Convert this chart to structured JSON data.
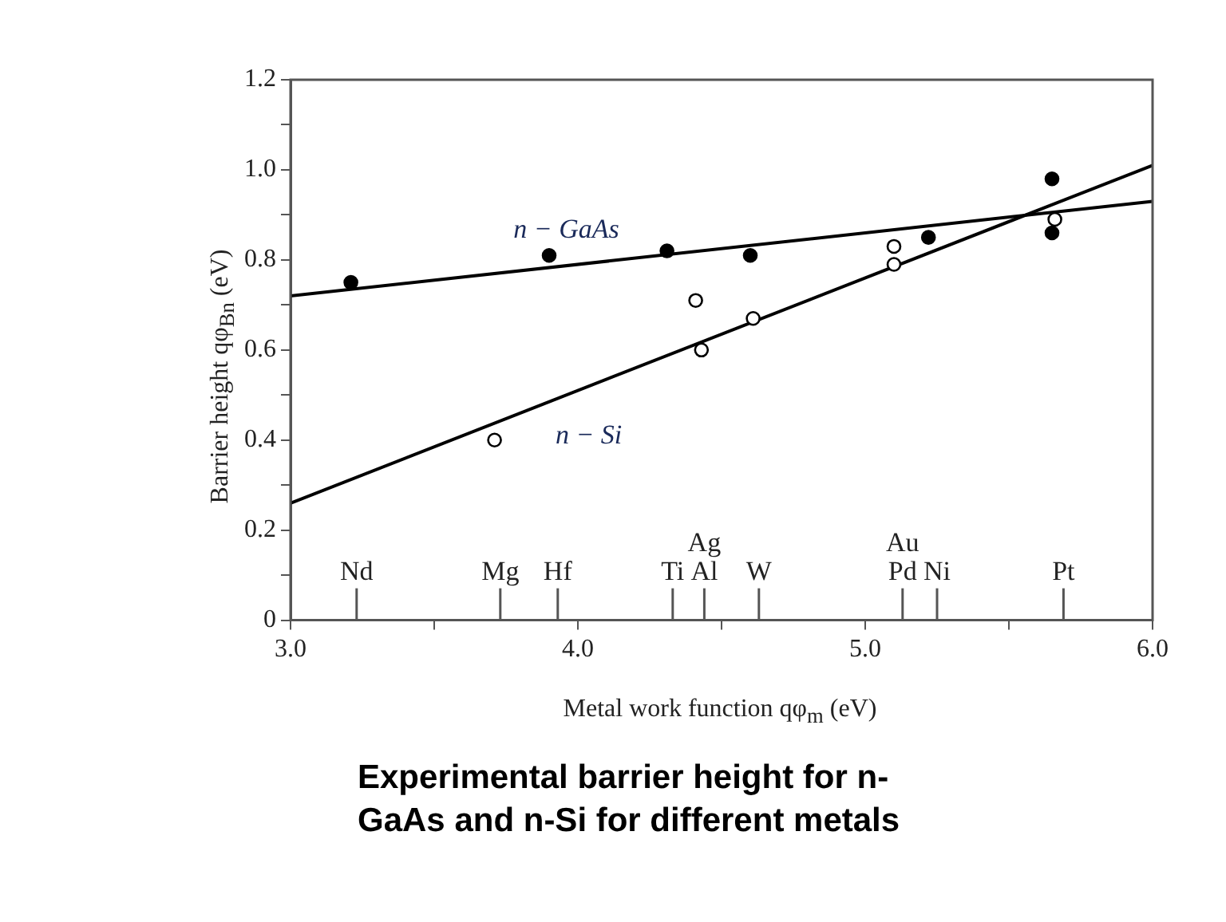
{
  "chart_data": {
    "type": "scatter",
    "xlabel": "Metal work function qφ$_{m}$ (eV)",
    "ylabel": "Barrier height qφ$_{Bn}$ (eV)",
    "xlim": [
      3.0,
      6.0
    ],
    "xticks": [
      {
        "value": 3,
        "label": "3.0"
      },
      {
        "value": 3.5,
        "label": null
      },
      {
        "value": 4,
        "label": "4.0"
      },
      {
        "value": 4.5,
        "label": null
      },
      {
        "value": 5,
        "label": "5.0"
      },
      {
        "value": 5.5,
        "label": null
      },
      {
        "value": 6,
        "label": "6.0"
      }
    ],
    "ref_lines": [
      {
        "axis": "x",
        "value": 3.23,
        "label": "Nd"
      },
      {
        "axis": "x",
        "value": 3.73,
        "label": "Mg"
      },
      {
        "axis": "x",
        "value": 3.93,
        "label": "Hf"
      },
      {
        "axis": "x",
        "value": 4.33,
        "label": "Ti"
      },
      {
        "axis": "x",
        "value": 4.44,
        "label": "Ag\nAl"
      },
      {
        "axis": "x",
        "value": 4.63,
        "label": "W"
      },
      {
        "axis": "x",
        "value": 5.13,
        "label": "Au\nPd"
      },
      {
        "axis": "x",
        "value": 5.25,
        "label": "Ni"
      },
      {
        "axis": "x",
        "value": 5.69,
        "label": "Pt"
      }
    ],
    "ylim": [
      0,
      1.2
    ],
    "yticks": [
      0,
      {
        "value": 0.1,
        "label": null
      },
      0.2,
      {
        "value": 0.3,
        "label": null
      },
      0.4,
      {
        "value": 0.5,
        "label": null
      },
      0.6,
      {
        "value": 0.7,
        "label": null
      },
      0.8,
      {
        "value": 0.9,
        "label": null
      },
      {
        "value": 1,
        "label": "1.0"
      },
      {
        "value": 1.1,
        "label": null
      },
      1.2
    ],
    "grid": false,
    "legend": false,
    "series": [
      {
        "type": "scatter",
        "marker": "circle",
        "color": "#000000",
        "x": [
          3.21,
          3.9,
          4.31,
          4.6,
          5.22,
          5.65,
          5.65
        ],
        "values": [
          0.75,
          0.81,
          0.82,
          0.81,
          0.85,
          0.98,
          0.86
        ]
      },
      {
        "type": "scatter",
        "marker": "circle",
        "color": "#000000",
        "x": [
          3.71,
          4.41,
          4.43,
          4.61,
          5.1,
          5.1,
          5.66
        ],
        "values": [
          0.4,
          0.71,
          0.6,
          0.67,
          0.83,
          0.79,
          0.89
        ]
      },
      {
        "type": "line",
        "name": "n − GaAs",
        "color": "#000000",
        "x": [
          3.0,
          6.0
        ],
        "values": [
          0.72,
          0.93
        ]
      },
      {
        "type": "line",
        "name": "n − Si",
        "color": "#000000",
        "x": [
          3.0,
          6.0
        ],
        "values": [
          0.26,
          1.01
        ]
      }
    ],
    "annotations": [
      "Experimental barrier height for n-GaAs and n-Si for different metals"
    ]
  }
}
